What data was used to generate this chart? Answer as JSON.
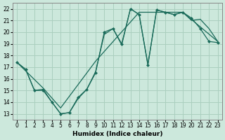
{
  "bg_color": "#cce8dc",
  "grid_color": "#aacfbf",
  "line_color": "#1a6b5a",
  "xlabel": "Humidex (Indice chaleur)",
  "xlim": [
    -0.5,
    23.5
  ],
  "ylim": [
    12.5,
    22.5
  ],
  "xticks": [
    0,
    1,
    2,
    3,
    4,
    5,
    6,
    7,
    8,
    9,
    10,
    11,
    12,
    13,
    14,
    15,
    16,
    17,
    18,
    19,
    20,
    21,
    22,
    23
  ],
  "yticks": [
    13,
    14,
    15,
    16,
    17,
    18,
    19,
    20,
    21,
    22
  ],
  "series1_x": [
    0,
    1,
    2,
    3,
    4,
    5,
    6,
    7,
    8,
    9,
    10,
    11,
    12,
    13,
    14,
    15,
    16,
    17,
    18,
    19,
    20,
    21,
    22,
    23
  ],
  "series1_y": [
    17.4,
    16.8,
    15.0,
    15.0,
    14.0,
    13.0,
    13.1,
    14.4,
    15.1,
    16.5,
    20.0,
    20.3,
    19.0,
    22.0,
    21.5,
    17.2,
    21.9,
    21.7,
    21.5,
    21.7,
    21.2,
    20.3,
    19.2,
    19.1
  ],
  "series2_x": [
    0,
    1,
    2,
    3,
    4,
    5,
    6,
    7,
    8,
    9,
    10,
    11,
    12,
    13,
    14,
    15,
    16,
    17,
    18,
    19,
    20,
    21,
    22,
    23
  ],
  "series2_y": [
    17.4,
    16.8,
    15.0,
    15.1,
    14.0,
    13.0,
    13.1,
    14.3,
    15.1,
    16.6,
    19.8,
    20.3,
    18.9,
    22.0,
    21.5,
    17.2,
    21.9,
    21.7,
    21.5,
    21.7,
    21.0,
    21.1,
    20.3,
    19.2
  ],
  "series3_x": [
    0,
    3,
    5,
    9,
    14,
    19,
    23
  ],
  "series3_y": [
    17.4,
    15.2,
    13.5,
    17.5,
    21.7,
    21.7,
    19.2
  ]
}
